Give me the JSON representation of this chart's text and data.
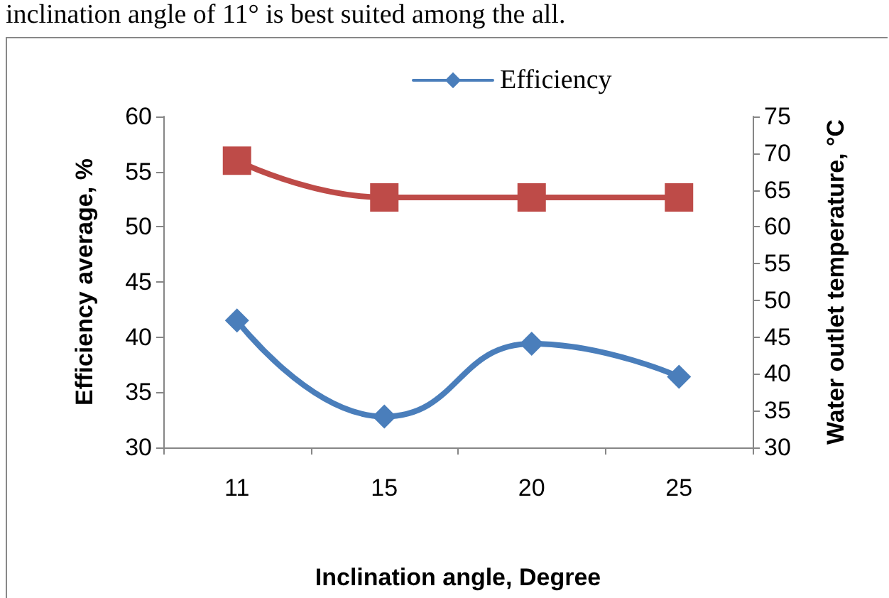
{
  "chart_data": {
    "type": "line",
    "annotations": [
      "inclination angle of 11° is best suited among the all."
    ],
    "xlabel": "Inclination angle, Degree",
    "ylabel": "Efficiency average, %",
    "y2label": "Water outlet temperature, °C",
    "categories": [
      "11",
      "15",
      "20",
      "25"
    ],
    "series": [
      {
        "name": "Efficiency",
        "color": "#4a7ebb",
        "values": [
          41.5,
          32.8,
          39.4,
          36.4
        ],
        "marker": "diamond"
      },
      {
        "color": "#be4b48",
        "values": [
          69,
          64,
          64,
          64
        ],
        "marker": "square",
        "axis": "y2"
      }
    ],
    "ylim": [
      30,
      60
    ],
    "yticks": [
      30,
      35,
      40,
      45,
      50,
      55,
      60
    ],
    "y2lim": [
      30,
      75
    ],
    "y2ticks": [
      30,
      35,
      40,
      45,
      50,
      55,
      60,
      65,
      70,
      75
    ],
    "grid": false,
    "legend": "top"
  }
}
